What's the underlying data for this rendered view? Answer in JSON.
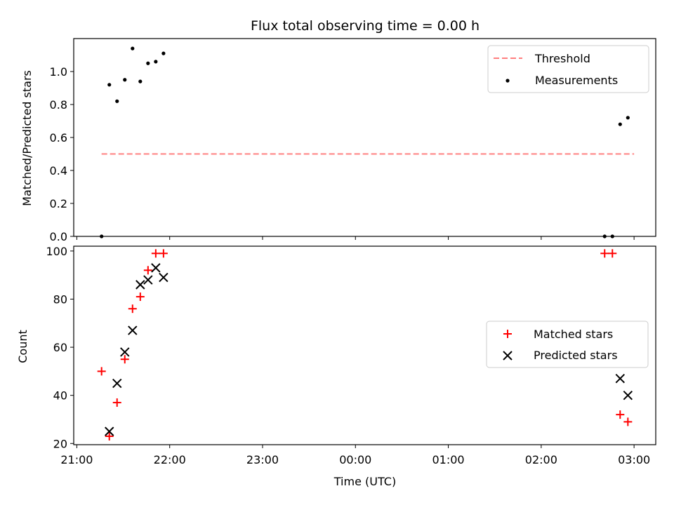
{
  "chart_data": [
    {
      "type": "scatter",
      "title": "Flux total observing time = 0.00 h",
      "xlabel": "",
      "ylabel": "Matched/Predicted stars",
      "xlim": [
        "20:58",
        "03:14"
      ],
      "ylim": [
        0,
        1.2
      ],
      "yticks": [
        "0.0",
        "0.2",
        "0.4",
        "0.6",
        "0.8",
        "1.0"
      ],
      "grid": false,
      "legend": "top-right",
      "threshold": {
        "name": "Threshold",
        "y": 0.5,
        "x": [
          "21:16",
          "03:00"
        ],
        "color": "#ff7f7f",
        "style": "dashed"
      },
      "series": [
        {
          "name": "Measurements",
          "color": "#000000",
          "marker": "dot",
          "x": [
            "21:16",
            "21:21",
            "21:26",
            "21:31",
            "21:36",
            "21:41",
            "21:46",
            "21:51",
            "21:56",
            "02:41",
            "02:46",
            "02:51",
            "02:56"
          ],
          "y": [
            0.0,
            0.92,
            0.82,
            0.95,
            1.14,
            0.94,
            1.05,
            1.06,
            1.11,
            0.0,
            0.0,
            0.68,
            0.72
          ]
        }
      ]
    },
    {
      "type": "scatter",
      "title": "",
      "xlabel": "Time (UTC)",
      "ylabel": "Count",
      "xlim": [
        "20:58",
        "03:14"
      ],
      "ylim": [
        19.5,
        102
      ],
      "xticks": [
        "21:00",
        "22:00",
        "23:00",
        "00:00",
        "01:00",
        "02:00",
        "03:00"
      ],
      "yticks": [
        "20",
        "40",
        "60",
        "80",
        "100"
      ],
      "grid": false,
      "legend": "center-right",
      "series": [
        {
          "name": "Matched stars",
          "color": "#ff0000",
          "marker": "plus",
          "x": [
            "21:16",
            "21:21",
            "21:26",
            "21:31",
            "21:36",
            "21:41",
            "21:46",
            "21:51",
            "21:56",
            "02:41",
            "02:46",
            "02:51",
            "02:56"
          ],
          "y": [
            50,
            23,
            37,
            55,
            76,
            81,
            92,
            99,
            99,
            99,
            99,
            32,
            29
          ]
        },
        {
          "name": "Predicted stars",
          "color": "#000000",
          "marker": "x",
          "x": [
            "21:21",
            "21:26",
            "21:31",
            "21:36",
            "21:41",
            "21:46",
            "21:51",
            "21:56",
            "02:51",
            "02:56"
          ],
          "y": [
            25,
            45,
            58,
            67,
            86,
            88,
            93,
            89,
            47,
            40
          ]
        }
      ]
    }
  ]
}
